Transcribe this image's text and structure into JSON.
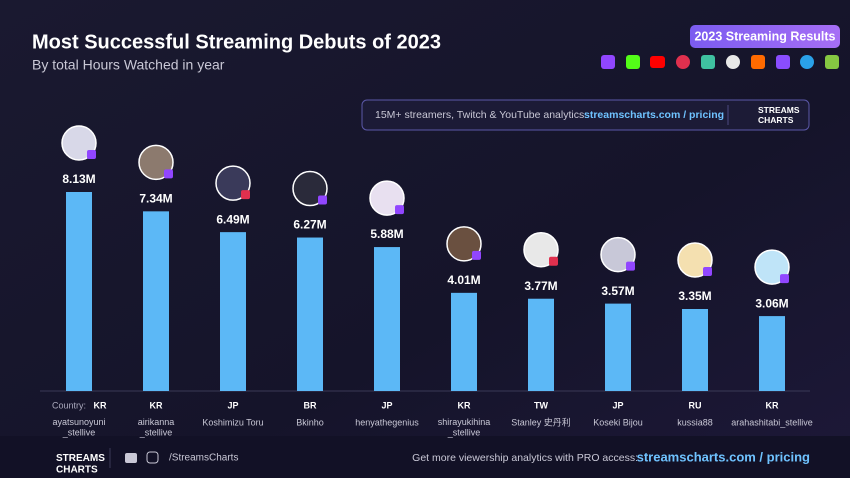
{
  "chart_data": {
    "type": "bar",
    "title": "Most Successful Streaming Debuts of 2023",
    "subtitle": "By total Hours Watched in year",
    "badge": "2023 Streaming Results",
    "banner": {
      "text": "15M+ streamers, Twitch & YouTube analytics:",
      "link": "streamscharts.com / pricing",
      "logo": "STREAMS\nCHARTS"
    },
    "country_label": "Country:",
    "countries": [
      "KR",
      "KR",
      "JP",
      "BR",
      "JP",
      "KR",
      "TW",
      "JP",
      "RU",
      "KR"
    ],
    "categories": [
      "ayatsunoyuni\n_stellive",
      "airikanna\n_stellive",
      "Koshimizu Toru",
      "Bkinho",
      "henyathegenius",
      "shirayukihina\n_stellive",
      "Stanley 史丹利",
      "Koseki Bijou",
      "kussia88",
      "arahashitabi_stellive"
    ],
    "values": [
      8.13,
      7.34,
      6.49,
      6.27,
      5.88,
      4.01,
      3.77,
      3.57,
      3.35,
      3.06
    ],
    "value_labels": [
      "8.13M",
      "7.34M",
      "6.49M",
      "6.27M",
      "5.88M",
      "4.01M",
      "3.77M",
      "3.57M",
      "3.35M",
      "3.06M"
    ],
    "color": "#5cb8f6",
    "footer": {
      "logo": "STREAMS\nCHARTS",
      "handle": "/StreamsCharts",
      "text": "Get more viewership analytics with PRO access:",
      "link": "streamscharts.com / pricing"
    }
  }
}
